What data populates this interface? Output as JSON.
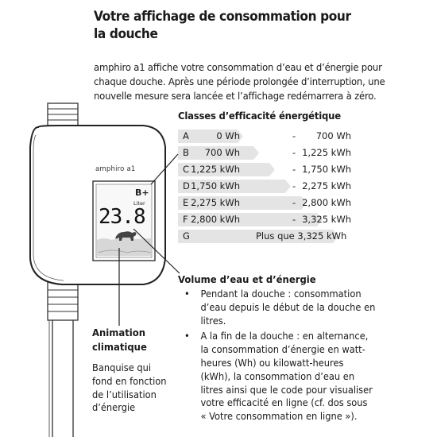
{
  "title": {
    "line1": "Votre affichage de consommation pour",
    "line2": "la douche"
  },
  "intro": {
    "line1": "amphiro a1 affiche votre consommation d’eau et d’énergie pour",
    "line2": "chaque douche. Après une période prolongée d’interruption, une",
    "line3": "nouvelle mesure sera lancée et l’affichage redémarrera à zéro."
  },
  "classes": {
    "title": "Classes d’efficacité énergétique",
    "rows": [
      {
        "letter": "A",
        "from": "0  Wh",
        "dash": "-",
        "to": "700 Wh"
      },
      {
        "letter": "B",
        "from": "700 Wh",
        "dash": "-",
        "to": "1,225 kWh"
      },
      {
        "letter": "C",
        "from": "1,225 kWh",
        "dash": "-",
        "to": "1,750 kWh"
      },
      {
        "letter": "D",
        "from": "1,750 kWh",
        "dash": "-",
        "to": "2,275 kWh"
      },
      {
        "letter": "E",
        "from": "2,275 kWh",
        "dash": "-",
        "to": "2,800 kWh"
      },
      {
        "letter": "F",
        "from": "2,800 kWh",
        "dash": "-",
        "to": "3,325 kWh"
      },
      {
        "letter": "G",
        "full": "Plus que 3,325 kWh"
      }
    ],
    "fill_color": "#e4e4e4"
  },
  "device": {
    "brand": "amphiro a1",
    "class_badge": "B+",
    "unit": "Liter",
    "reading": "23.8",
    "icon": "polar-bear-on-ice-floe-icon"
  },
  "volume": {
    "title": "Volume d’eau et d’énergie",
    "bullet_char": "•",
    "bullet1": [
      "Pendant la douche :  consommation",
      "d’eau depuis le début de la douche en",
      "litres."
    ],
    "bullet2": [
      "A la fin de la douche : en alternance,",
      "la consommation d’énergie en watt-",
      "heures (Wh) ou kilowatt-heures",
      "(kWh), la consommation d’eau en",
      "litres ainsi que le code pour visualiser",
      "votre efficacité en ligne (cf. dos sous",
      "« Votre consommation en ligne »)."
    ]
  },
  "animation": {
    "title_line1": "Animation",
    "title_line2": "climatique",
    "body": [
      "Banquise qui",
      "fond en fonction",
      "de l’utilisation",
      "d’énergie"
    ]
  }
}
